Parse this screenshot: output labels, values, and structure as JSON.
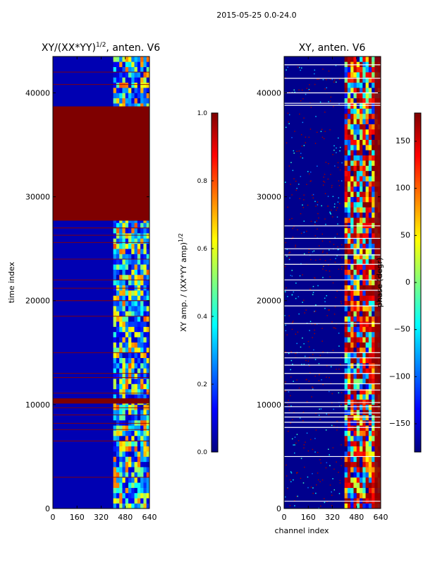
{
  "suptitle": "2015-05-25 0.0-24.0",
  "colors": {
    "jet_stops": [
      "#00007f",
      "#0000ff",
      "#007fff",
      "#00ffff",
      "#7fff7f",
      "#ffff00",
      "#ff7f00",
      "#ff0000",
      "#7f0000"
    ],
    "overlay_red": "#8b0000",
    "overlay_white": "#ffffff"
  },
  "chart_data": [
    {
      "type": "heatmap",
      "title": "XY/(XX*YY)",
      "title_exponent": "1/2",
      "title_suffix": ", anten. V6",
      "xlabel": "",
      "ylabel": "time index",
      "xlim": [
        0,
        640
      ],
      "ylim": [
        0,
        43500
      ],
      "xticks": [
        0,
        160,
        320,
        480,
        640
      ],
      "xtick_labels": [
        "0",
        "160",
        "320",
        "480",
        "640"
      ],
      "yticks": [
        0,
        10000,
        20000,
        30000,
        40000
      ],
      "ytick_labels": [
        "0",
        "10000",
        "20000",
        "30000",
        "40000"
      ],
      "background_value": 0.05,
      "active_channel_range": [
        400,
        640
      ],
      "saturated_bands": [
        {
          "t0": 27700,
          "t1": 38700,
          "value": 1.0
        },
        {
          "t0": 10100,
          "t1": 10600,
          "value": 1.0
        }
      ],
      "flag_lines_time": [
        42000,
        40800,
        27000,
        26300,
        25600,
        24000,
        22000,
        21200,
        20000,
        18500,
        15000,
        13000,
        12600,
        11100,
        9700,
        9000,
        8200,
        7600,
        6500,
        3000
      ],
      "colorbar": {
        "label": "XY amp. / (XX*YY amp)",
        "label_exponent": "1/2",
        "range": [
          0.0,
          1.0
        ],
        "ticks": [
          0.0,
          0.2,
          0.4,
          0.6,
          0.8,
          1.0
        ],
        "tick_labels": [
          "0.0",
          "0.2",
          "0.4",
          "0.6",
          "0.8",
          "1.0"
        ]
      }
    },
    {
      "type": "heatmap",
      "title": "XY, anten. V6",
      "xlabel": "channel index",
      "ylabel": "",
      "xlim": [
        0,
        640
      ],
      "ylim": [
        0,
        43500
      ],
      "xticks": [
        0,
        160,
        320,
        480,
        640
      ],
      "xtick_labels": [
        "0",
        "160",
        "320",
        "480",
        "640"
      ],
      "yticks": [
        0,
        10000,
        20000,
        30000,
        40000
      ],
      "ytick_labels": [
        "0",
        "10000",
        "20000",
        "30000",
        "40000"
      ],
      "background_value": -175,
      "active_channel_range": [
        400,
        640
      ],
      "edge_saturation_channels": [
        600,
        640
      ],
      "flag_lines_time": [
        42700,
        41400,
        40000,
        39000,
        38800,
        27200,
        26000,
        25000,
        24400,
        23500,
        22000,
        21000,
        19500,
        17800,
        15000,
        14500,
        13800,
        13000,
        12000,
        11400,
        10200,
        9800,
        9200,
        8800,
        8300,
        7800,
        5000,
        700
      ],
      "colorbar": {
        "label": "phase (degr)",
        "range": [
          -180,
          180
        ],
        "ticks": [
          -150,
          -100,
          -50,
          0,
          50,
          100,
          150
        ],
        "tick_labels": [
          "−150",
          "−100",
          "−50",
          "0",
          "50",
          "100",
          "150"
        ]
      }
    }
  ]
}
